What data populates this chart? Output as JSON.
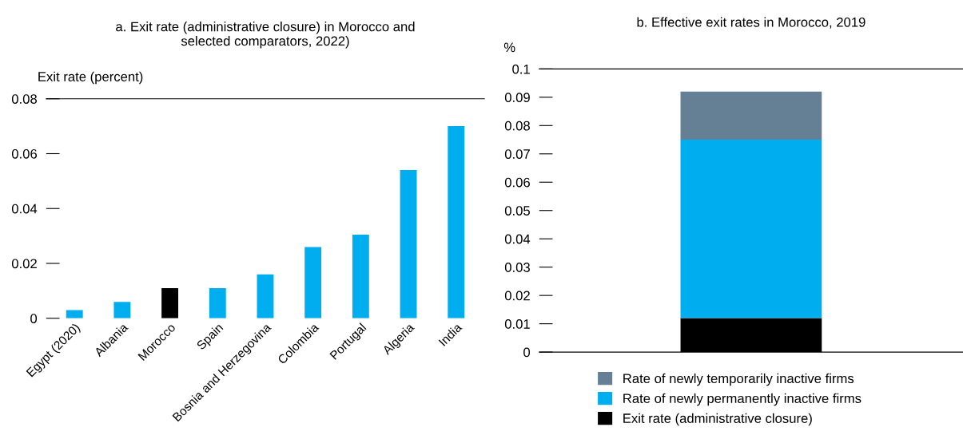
{
  "chart_data": [
    {
      "type": "bar",
      "title": "a. Exit rate (administrative closure) in Morocco and\nselected comparators, 2022)",
      "ylabel": "Exit rate (percent)",
      "categories": [
        "Egypt (2020)",
        "Albania",
        "Morocco",
        "Spain",
        "Bosnia and Herzegovina",
        "Colombia",
        "Portugal",
        "Algeria",
        "India"
      ],
      "values": [
        0.003,
        0.006,
        0.011,
        0.011,
        0.016,
        0.026,
        0.0305,
        0.054,
        0.07
      ],
      "colors": [
        "#00aeef",
        "#00aeef",
        "#000000",
        "#00aeef",
        "#00aeef",
        "#00aeef",
        "#00aeef",
        "#00aeef",
        "#00aeef"
      ],
      "ylim": [
        0,
        0.08
      ],
      "yticks": [
        0,
        {
          "value": 0.02,
          "label": "0.02"
        },
        {
          "value": 0.04,
          "label": "0.04"
        },
        {
          "value": 0.06,
          "label": "0.06"
        },
        {
          "value": 0.08,
          "label": "0.08"
        }
      ],
      "grid": false,
      "legend": false
    },
    {
      "type": "bar",
      "title": "b. Effective exit rates in Morocco, 2019",
      "ylabel": "%",
      "stacked": true,
      "categories": [
        null
      ],
      "series": [
        {
          "name": "Exit rate (administrative closure)",
          "color": "#000000",
          "values": [
            0.012
          ]
        },
        {
          "name": "Rate of newly permanently inactive firms",
          "color": "#00aeef",
          "values": [
            0.063
          ]
        },
        {
          "name": "Rate of newly temporarily inactive firms",
          "color": "#657f95",
          "values": [
            0.017
          ]
        }
      ],
      "ylim": [
        0,
        0.1
      ],
      "yticks": [
        0,
        {
          "value": 0.01,
          "label": "0.01"
        },
        {
          "value": 0.02,
          "label": "0.02"
        },
        {
          "value": 0.03,
          "label": "0.03"
        },
        {
          "value": 0.04,
          "label": "0.04"
        },
        {
          "value": 0.05,
          "label": "0.05"
        },
        {
          "value": 0.06,
          "label": "0.06"
        },
        {
          "value": 0.07,
          "label": "0.07"
        },
        {
          "value": 0.08,
          "label": "0.08"
        },
        {
          "value": 0.09,
          "label": "0.09"
        },
        {
          "value": 0.1,
          "label": "0.1"
        }
      ],
      "grid": false,
      "legend": "bottom"
    }
  ]
}
